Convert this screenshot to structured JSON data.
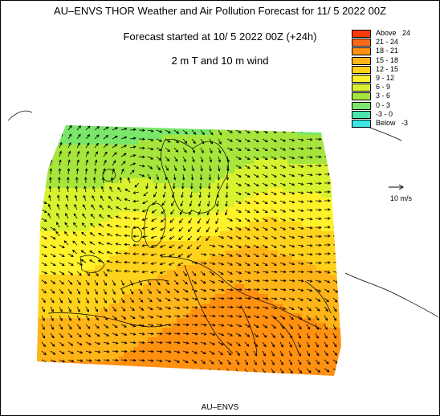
{
  "header": {
    "title": "AU–ENVS THOR Weather and Air Pollution Forecast for 11/ 5 2022  00Z",
    "started": "Forecast started at 10/ 5 2022  00Z (+24h)",
    "field": "2 m T and 10 m wind"
  },
  "legend": {
    "items": [
      {
        "label": "Above   24",
        "color": "#ff3a0a"
      },
      {
        "label": "21 - 24",
        "color": "#ff6a18"
      },
      {
        "label": "18 - 21",
        "color": "#ff9010"
      },
      {
        "label": "15 - 18",
        "color": "#ffb418"
      },
      {
        "label": "12 - 15",
        "color": "#ffd21c"
      },
      {
        "label": "9 - 12",
        "color": "#fff22a"
      },
      {
        "label": "6 - 9",
        "color": "#d8f230"
      },
      {
        "label": "3 - 6",
        "color": "#a6e63c"
      },
      {
        "label": "0 - 3",
        "color": "#7ae66a"
      },
      {
        "label": "-3 - 0",
        "color": "#48e6a8"
      },
      {
        "label": "Below   -3",
        "color": "#3ce6e6"
      }
    ]
  },
  "wind_reference": {
    "label": "10 m/s"
  },
  "credit": "AU–ENVS",
  "colors": {
    "background": "#ffffff",
    "coastline": "#000000",
    "arrow": "#000000"
  }
}
